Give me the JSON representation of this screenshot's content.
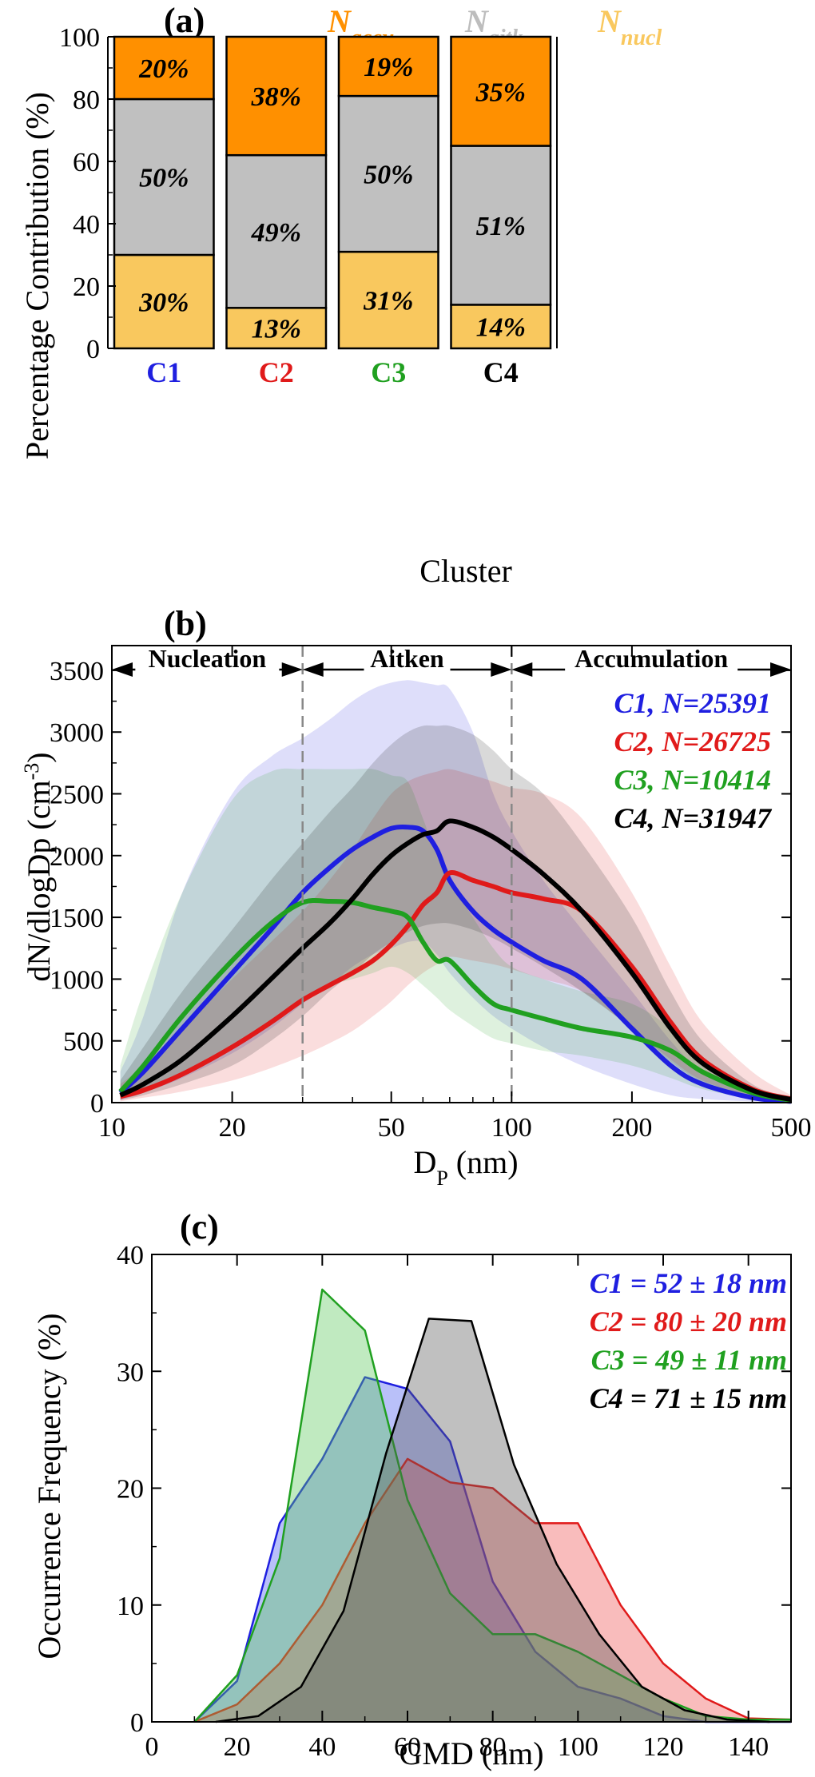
{
  "chart_data": [
    {
      "panel_label": "(a)",
      "type": "bar",
      "stacked": true,
      "categories": [
        "C1",
        "C2",
        "C3",
        "C4"
      ],
      "category_colors": [
        "#1f1fe0",
        "#e01a1a",
        "#20a020",
        "#000000"
      ],
      "series": [
        {
          "name_main": "N",
          "name_sub": "nucl",
          "color": "#f9c85e",
          "values": [
            30,
            13,
            31,
            14
          ],
          "labels": [
            "30%",
            "13%",
            "31%",
            "14%"
          ]
        },
        {
          "name_main": "N",
          "name_sub": "aitk",
          "color": "#c0c0c0",
          "values": [
            50,
            49,
            50,
            51
          ],
          "labels": [
            "50%",
            "49%",
            "50%",
            "51%"
          ]
        },
        {
          "name_main": "N",
          "name_sub": "accu",
          "color": "#ff9000",
          "values": [
            20,
            38,
            19,
            35
          ],
          "labels": [
            "20%",
            "38%",
            "19%",
            "35%"
          ]
        }
      ],
      "legend_order": [
        2,
        1,
        0
      ],
      "legend_text_colors": [
        "#ff9000",
        "#bdbdbd",
        "#f9c85e"
      ],
      "ylabel": "Percentage Contribution (%)",
      "xlabel": "Cluster",
      "ylim": [
        0,
        100
      ],
      "yticks": [
        "0",
        "20",
        "40",
        "60",
        "80",
        "100"
      ]
    },
    {
      "panel_label": "(b)",
      "type": "line",
      "x_scale": "log",
      "xlim": [
        10,
        500
      ],
      "ylim": [
        0,
        3700
      ],
      "xticks": [
        {
          "v": 10,
          "t": "10"
        },
        {
          "v": 20,
          "t": "20"
        },
        {
          "v": 50,
          "t": "50"
        },
        {
          "v": 100,
          "t": "100"
        },
        {
          "v": 200,
          "t": "200"
        },
        {
          "v": 500,
          "t": "500"
        }
      ],
      "yticks": [
        "0",
        "500",
        "1000",
        "1500",
        "2000",
        "2500",
        "3000",
        "3500"
      ],
      "xlabel_main": "D",
      "xlabel_sub": "P",
      "xlabel_rest": " (nm)",
      "ylabel_main": "dN/dlogDp (cm",
      "ylabel_sup": "-3",
      "ylabel_end": ")",
      "regions": [
        {
          "label": "Nucleation",
          "from": 10,
          "to": 30
        },
        {
          "label": "Aitken",
          "from": 30,
          "to": 100
        },
        {
          "label": "Accumulation",
          "from": 100,
          "to": 500
        }
      ],
      "boundaries": [
        30,
        100
      ],
      "series": [
        {
          "name": "C1, N=25391",
          "color": "#1f1fe0",
          "x": [
            10.5,
            12,
            15,
            20,
            25,
            30,
            35,
            40,
            45,
            50,
            55,
            60,
            65,
            70,
            80,
            90,
            100,
            120,
            150,
            200,
            250,
            300,
            400,
            500
          ],
          "y": [
            80,
            250,
            600,
            1050,
            1400,
            1700,
            1900,
            2050,
            2150,
            2220,
            2230,
            2200,
            2050,
            1800,
            1550,
            1400,
            1300,
            1150,
            1000,
            600,
            300,
            150,
            40,
            10
          ],
          "upper": [
            250,
            700,
            1700,
            2500,
            2800,
            2950,
            3100,
            3250,
            3350,
            3400,
            3420,
            3400,
            3380,
            3350,
            3000,
            2500,
            2200,
            1800,
            1400,
            900,
            500,
            250,
            80,
            30
          ],
          "lower": [
            20,
            80,
            200,
            400,
            600,
            800,
            950,
            1100,
            1200,
            1250,
            1300,
            1300,
            1200,
            1050,
            850,
            700,
            600,
            450,
            300,
            150,
            60,
            30,
            10,
            0
          ]
        },
        {
          "name": "C2, N=26725",
          "color": "#e01a1a",
          "x": [
            10.5,
            12,
            15,
            20,
            25,
            30,
            35,
            40,
            45,
            50,
            55,
            60,
            65,
            70,
            80,
            90,
            100,
            120,
            150,
            200,
            250,
            300,
            400,
            500
          ],
          "y": [
            50,
            100,
            230,
            450,
            650,
            830,
            950,
            1050,
            1150,
            1280,
            1430,
            1600,
            1700,
            1860,
            1800,
            1750,
            1700,
            1650,
            1550,
            1100,
            650,
            350,
            110,
            30
          ],
          "upper": [
            150,
            300,
            600,
            1000,
            1300,
            1550,
            1800,
            2050,
            2300,
            2500,
            2600,
            2650,
            2680,
            2700,
            2650,
            2600,
            2550,
            2500,
            2300,
            1700,
            1100,
            650,
            250,
            60
          ],
          "lower": [
            10,
            40,
            90,
            180,
            280,
            380,
            480,
            580,
            700,
            820,
            950,
            1050,
            1120,
            1180,
            1150,
            1120,
            1080,
            1000,
            900,
            600,
            350,
            180,
            50,
            10
          ]
        },
        {
          "name": "C3, N=10414",
          "color": "#20a020",
          "x": [
            10.5,
            12,
            15,
            20,
            25,
            30,
            35,
            40,
            45,
            50,
            55,
            60,
            65,
            70,
            80,
            90,
            100,
            120,
            150,
            200,
            250,
            300,
            400,
            500
          ],
          "y": [
            90,
            300,
            700,
            1150,
            1450,
            1620,
            1630,
            1620,
            1580,
            1550,
            1500,
            1300,
            1150,
            1150,
            950,
            800,
            750,
            680,
            600,
            530,
            420,
            250,
            80,
            20
          ],
          "upper": [
            300,
            900,
            1700,
            2450,
            2680,
            2700,
            2700,
            2700,
            2700,
            2650,
            2600,
            2300,
            2000,
            1800,
            1500,
            1250,
            1100,
            1000,
            900,
            800,
            600,
            350,
            120,
            30
          ],
          "lower": [
            30,
            100,
            250,
            450,
            650,
            850,
            950,
            1000,
            1050,
            1100,
            1050,
            950,
            850,
            750,
            620,
            520,
            480,
            420,
            380,
            300,
            200,
            110,
            30,
            5
          ]
        },
        {
          "name": "C4, N=31947",
          "color": "#000000",
          "x": [
            10.5,
            12,
            15,
            20,
            25,
            30,
            35,
            40,
            45,
            50,
            55,
            60,
            65,
            70,
            80,
            90,
            100,
            120,
            150,
            200,
            250,
            300,
            400,
            500
          ],
          "y": [
            60,
            150,
            350,
            700,
            1000,
            1250,
            1450,
            1650,
            1850,
            2000,
            2100,
            2170,
            2200,
            2280,
            2230,
            2150,
            2050,
            1850,
            1550,
            1050,
            600,
            320,
            100,
            25
          ],
          "upper": [
            180,
            450,
            900,
            1400,
            1800,
            2100,
            2350,
            2550,
            2750,
            2900,
            3000,
            3050,
            3050,
            3050,
            2980,
            2850,
            2700,
            2500,
            2100,
            1500,
            900,
            500,
            150,
            40
          ],
          "lower": [
            20,
            60,
            150,
            300,
            500,
            700,
            900,
            1050,
            1200,
            1300,
            1380,
            1430,
            1450,
            1450,
            1400,
            1330,
            1250,
            1100,
            900,
            600,
            330,
            170,
            50,
            10
          ]
        }
      ]
    },
    {
      "panel_label": "(c)",
      "type": "area",
      "xlim": [
        0,
        150
      ],
      "ylim": [
        0,
        40
      ],
      "xticks": [
        "0",
        "20",
        "40",
        "60",
        "80",
        "100",
        "120",
        "140"
      ],
      "yticks": [
        "0",
        "10",
        "20",
        "30",
        "40"
      ],
      "xlabel": "GMD (nm)",
      "ylabel": "Occurrence Frequency (%)",
      "series": [
        {
          "name": "C1 = 52 ± 18 nm",
          "color": "#1f1fe0",
          "fill": "rgba(70,90,240,0.38)",
          "x": [
            10,
            20,
            30,
            40,
            50,
            60,
            70,
            80,
            90,
            100,
            110,
            120,
            130,
            140,
            150
          ],
          "y": [
            0,
            3.5,
            17,
            22.5,
            29.5,
            28.5,
            24,
            12,
            6,
            3,
            2,
            0.5,
            0,
            0,
            0
          ]
        },
        {
          "name": "C2 = 80 ± 20 nm",
          "color": "#e01a1a",
          "fill": "rgba(240,80,80,0.38)",
          "x": [
            10,
            20,
            30,
            40,
            50,
            60,
            70,
            80,
            90,
            100,
            110,
            120,
            130,
            140,
            150
          ],
          "y": [
            0,
            1.5,
            5,
            10,
            17,
            22.5,
            20.5,
            20,
            17,
            17,
            10,
            5,
            2,
            0.3,
            0.2
          ]
        },
        {
          "name": "C3 = 49 ± 11 nm",
          "color": "#20a020",
          "fill": "rgba(90,200,90,0.38)",
          "x": [
            10,
            20,
            30,
            40,
            50,
            60,
            70,
            80,
            90,
            100,
            110,
            120,
            130,
            140,
            150
          ],
          "y": [
            0,
            4,
            14,
            37,
            33.5,
            19,
            11,
            7.5,
            7.5,
            6,
            4,
            2,
            0.5,
            0.2,
            0.2
          ]
        },
        {
          "name": "C4 = 71 ± 15 nm",
          "color": "#000000",
          "fill": "rgba(90,90,90,0.38)",
          "x": [
            15,
            25,
            35,
            45,
            55,
            65,
            75,
            85,
            95,
            105,
            115,
            125,
            135,
            145
          ],
          "y": [
            0,
            0.5,
            3,
            9.5,
            23,
            34.5,
            34.3,
            22,
            13.5,
            7.5,
            3,
            1,
            0.2,
            0
          ]
        }
      ]
    }
  ]
}
